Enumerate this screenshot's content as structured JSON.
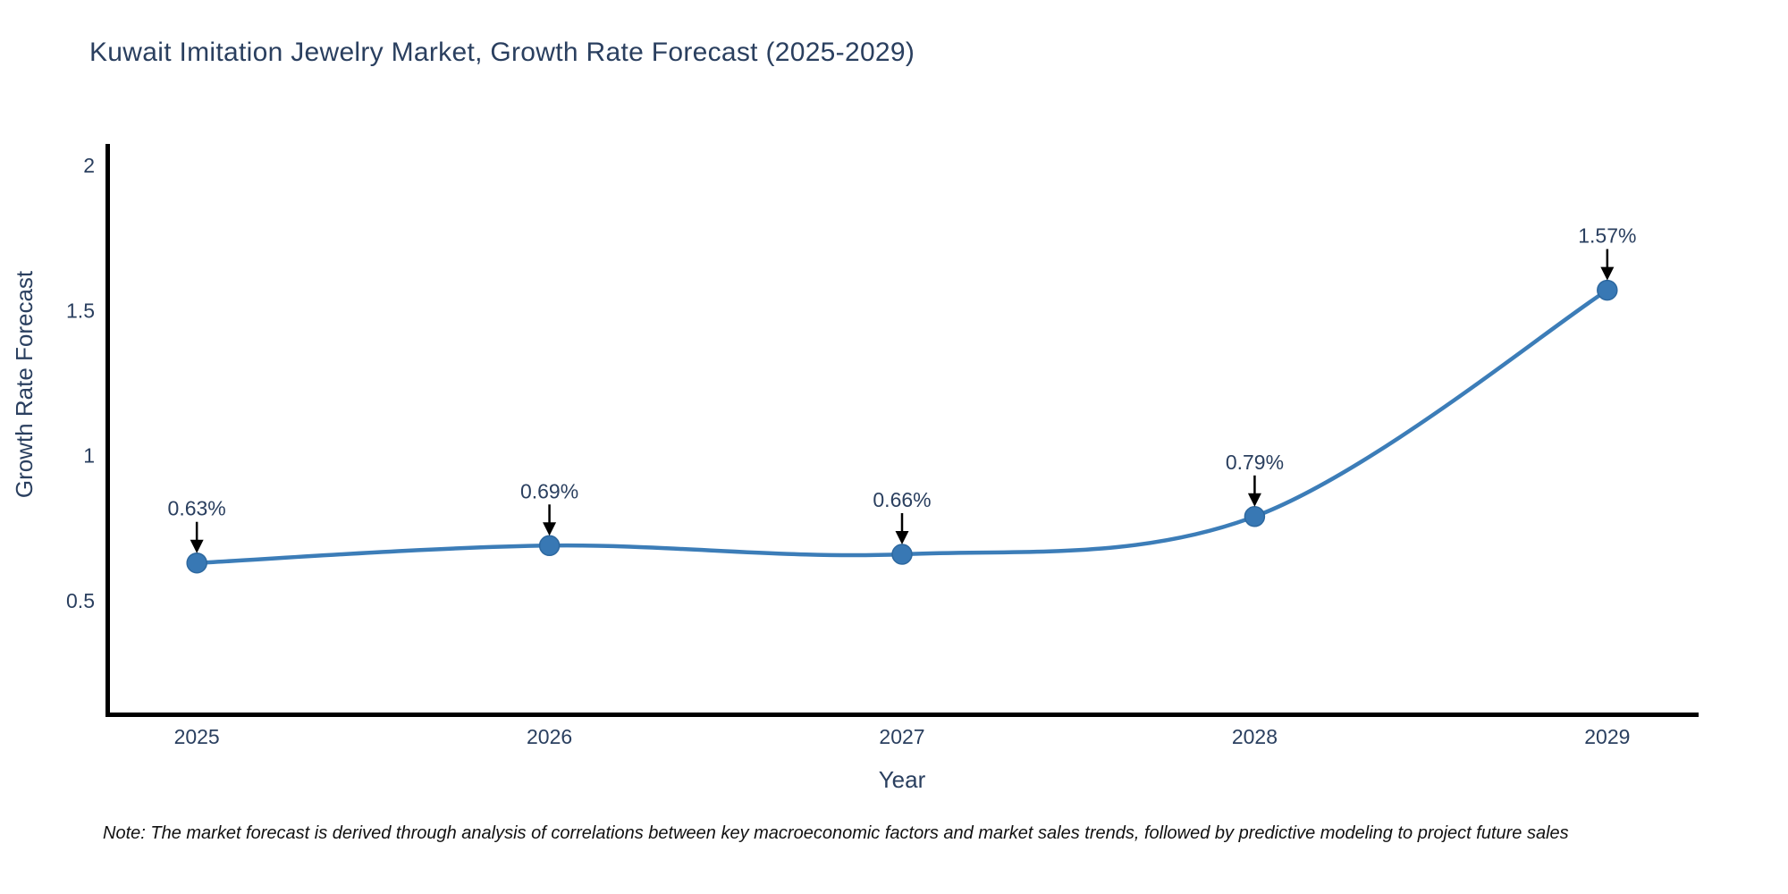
{
  "title": "Kuwait Imitation Jewelry Market, Growth Rate Forecast (2025-2029)",
  "note": "Note: The market forecast is derived through analysis of correlations between key macroeconomic factors and market sales trends, followed by predictive modeling to project future sales",
  "chart_data": {
    "type": "line",
    "title": "Kuwait Imitation Jewelry Market, Growth Rate Forecast (2025-2029)",
    "xlabel": "Year",
    "ylabel": "Growth Rate Forecast",
    "line_shape": "spline",
    "grid": false,
    "legend": false,
    "categories": [
      2025,
      2026,
      2027,
      2028,
      2029
    ],
    "series": [
      {
        "name": "Growth Rate Forecast",
        "values": [
          0.63,
          0.69,
          0.66,
          0.79,
          1.57
        ]
      }
    ],
    "point_labels": [
      "0.63%",
      "0.69%",
      "0.66%",
      "0.79%",
      "1.57%"
    ],
    "xticks": [
      2025,
      2026,
      2027,
      2028,
      2029
    ],
    "xtick_labels": [
      "2025",
      "2026",
      "2027",
      "2028",
      "2029"
    ],
    "yticks": [
      0.5,
      1,
      1.5,
      2
    ],
    "ytick_labels": [
      "0.5",
      "1",
      "1.5",
      "2"
    ],
    "xlim": [
      2024.741,
      2029.259
    ],
    "ylim": [
      0.107,
      2.074
    ],
    "colors": {
      "line": "#3c7db8",
      "marker_fill": "#3878b4",
      "marker_edge": "#2d689f",
      "axis_line": "#000000",
      "tick_text": "#2a3f5f",
      "axis_title_text": "#2a3f5f",
      "annotation_text": "#2a3f5f",
      "annotation_arrow": "#000000",
      "background": "#ffffff"
    }
  }
}
